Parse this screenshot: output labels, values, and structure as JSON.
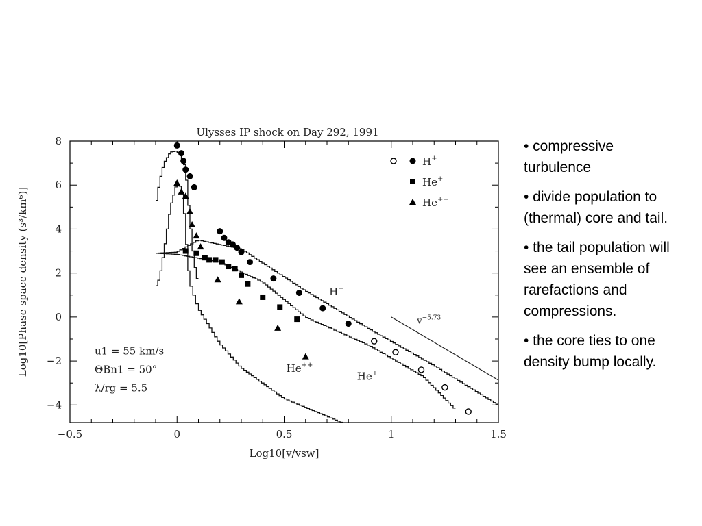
{
  "slide": {
    "bullets": [
      "• compressive turbulence",
      "• divide population to (thermal) core and tail.",
      "• the tail population will see an ensemble of rarefactions and compressions.",
      "• the core ties to one density bump locally."
    ]
  },
  "chart_data": {
    "type": "scatter",
    "title": "Ulysses IP shock on Day 292, 1991",
    "xlabel": "Log10[v/vsw]",
    "ylabel": "Log10[Phase space density (s³/km⁶)]",
    "xlim": [
      -0.5,
      1.5
    ],
    "ylim": [
      -4.8,
      8.0
    ],
    "xticks": [
      "-0.5",
      "0",
      "0.5",
      "1",
      "1.5"
    ],
    "yticks": [
      "-4",
      "-2",
      "0",
      "2",
      "4",
      "6",
      "8"
    ],
    "grid": false,
    "legend_position": "top-right",
    "legend": [
      {
        "symbols": "open-circle, filled-circle",
        "label": "H+"
      },
      {
        "symbols": "filled-square",
        "label": "He+"
      },
      {
        "symbols": "filled-triangle",
        "label": "He++"
      }
    ],
    "parameters": [
      "u1 = 55 km/s",
      "ΘBn1 = 50°",
      "λ/rg = 5.5"
    ],
    "reference_line": {
      "label": "v^-5.73",
      "x": [
        1.0,
        1.5
      ],
      "y": [
        0.0,
        -2.87
      ]
    },
    "series": [
      {
        "name": "H+",
        "marker": "filled-circle",
        "points": [
          [
            0.0,
            7.8
          ],
          [
            0.02,
            7.45
          ],
          [
            0.03,
            7.1
          ],
          [
            0.04,
            6.7
          ],
          [
            0.06,
            6.4
          ],
          [
            0.08,
            5.9
          ],
          [
            0.2,
            3.9
          ],
          [
            0.22,
            3.6
          ],
          [
            0.24,
            3.4
          ],
          [
            0.26,
            3.3
          ],
          [
            0.28,
            3.15
          ],
          [
            0.3,
            2.95
          ],
          [
            0.34,
            2.5
          ],
          [
            0.45,
            1.75
          ],
          [
            0.57,
            1.1
          ],
          [
            0.68,
            0.4
          ],
          [
            0.8,
            -0.3
          ]
        ]
      },
      {
        "name": "H+ (open)",
        "marker": "open-circle",
        "points": [
          [
            0.92,
            -1.1
          ],
          [
            1.02,
            -1.6
          ],
          [
            1.14,
            -2.4
          ],
          [
            1.25,
            -3.2
          ],
          [
            1.36,
            -4.3
          ]
        ]
      },
      {
        "name": "He+",
        "marker": "filled-square",
        "points": [
          [
            0.04,
            3.0
          ],
          [
            0.09,
            2.9
          ],
          [
            0.13,
            2.7
          ],
          [
            0.15,
            2.6
          ],
          [
            0.18,
            2.6
          ],
          [
            0.21,
            2.5
          ],
          [
            0.24,
            2.3
          ],
          [
            0.27,
            2.2
          ],
          [
            0.3,
            1.9
          ],
          [
            0.33,
            1.5
          ],
          [
            0.4,
            0.9
          ],
          [
            0.48,
            0.45
          ],
          [
            0.56,
            -0.1
          ]
        ]
      },
      {
        "name": "He++",
        "marker": "filled-triangle",
        "points": [
          [
            0.0,
            6.1
          ],
          [
            0.02,
            5.7
          ],
          [
            0.04,
            5.5
          ],
          [
            0.06,
            4.8
          ],
          [
            0.07,
            4.2
          ],
          [
            0.09,
            3.7
          ],
          [
            0.11,
            3.2
          ],
          [
            0.19,
            1.7
          ],
          [
            0.29,
            0.7
          ],
          [
            0.47,
            -0.5
          ],
          [
            0.6,
            -1.8
          ]
        ]
      }
    ],
    "model_curves": [
      {
        "label": "H+",
        "x": [
          -0.1,
          0.0,
          0.1,
          0.3,
          0.6,
          0.9,
          1.2,
          1.5
        ],
        "y": [
          2.9,
          2.95,
          3.5,
          3.1,
          1.2,
          -0.55,
          -2.2,
          -4.0
        ]
      },
      {
        "label": "He+",
        "x": [
          -0.1,
          0.0,
          0.2,
          0.4,
          0.6,
          0.9,
          1.15,
          1.3
        ],
        "y": [
          2.9,
          2.85,
          2.5,
          1.6,
          0.0,
          -1.3,
          -2.7,
          -4.2
        ]
      },
      {
        "label": "He++",
        "x": [
          -0.1,
          -0.08,
          -0.06,
          -0.03,
          0.0,
          0.02,
          0.03,
          0.04,
          0.05,
          0.06,
          0.1,
          0.15,
          0.2,
          0.3,
          0.5,
          0.82
        ],
        "y": [
          1.3,
          1.8,
          3.0,
          5.0,
          6.1,
          5.9,
          5.4,
          4.0,
          2.6,
          1.6,
          0.4,
          -0.4,
          -1.2,
          -2.3,
          -3.7,
          -5.0
        ]
      },
      {
        "label": "H+ core",
        "x": [
          -0.1,
          -0.08,
          -0.06,
          -0.03,
          0.0,
          0.02,
          0.04,
          0.06,
          0.08,
          0.1
        ],
        "y": [
          5.0,
          6.2,
          7.0,
          7.5,
          7.55,
          7.3,
          6.8,
          4.5,
          2.5,
          1.5
        ]
      }
    ],
    "curve_labels": [
      "H+",
      "He+",
      "He++"
    ]
  }
}
